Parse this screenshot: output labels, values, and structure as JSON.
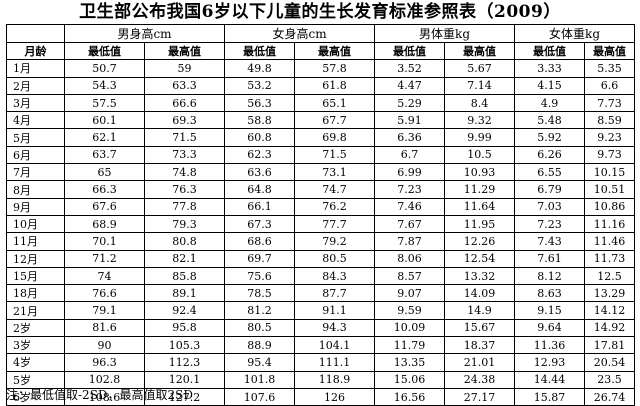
{
  "title": "卫生部公布我国6岁以下儿童的生长发育标准参照表（2009）",
  "group_headers": [
    "男身高cm",
    "女身高cm",
    "男体重kg",
    "女体重kg"
  ],
  "first_col_header": "月龄",
  "sub_headers": [
    "最低值",
    "最高值",
    "最低值",
    "最高值",
    "最低值",
    "最高值",
    "最低值",
    "最高值"
  ],
  "rows": [
    {
      "age": "1月",
      "values": [
        "50.7",
        "59",
        "49.8",
        "57.8",
        "3.52",
        "5.67",
        "3.33",
        "5.35"
      ]
    },
    {
      "age": "2月",
      "values": [
        "54.3",
        "63.3",
        "53.2",
        "61.8",
        "4.47",
        "7.14",
        "4.15",
        "6.6"
      ]
    },
    {
      "age": "3月",
      "values": [
        "57.5",
        "66.6",
        "56.3",
        "65.1",
        "5.29",
        "8.4",
        "4.9",
        "7.73"
      ]
    },
    {
      "age": "4月",
      "values": [
        "60.1",
        "69.3",
        "58.8",
        "67.7",
        "5.91",
        "9.32",
        "5.48",
        "8.59"
      ]
    },
    {
      "age": "5月",
      "values": [
        "62.1",
        "71.5",
        "60.8",
        "69.8",
        "6.36",
        "9.99",
        "5.92",
        "9.23"
      ]
    },
    {
      "age": "6月",
      "values": [
        "63.7",
        "73.3",
        "62.3",
        "71.5",
        "6.7",
        "10.5",
        "6.26",
        "9.73"
      ]
    },
    {
      "age": "7月",
      "values": [
        "65",
        "74.8",
        "63.6",
        "73.1",
        "6.99",
        "10.93",
        "6.55",
        "10.15"
      ]
    },
    {
      "age": "8月",
      "values": [
        "66.3",
        "76.3",
        "64.8",
        "74.7",
        "7.23",
        "11.29",
        "6.79",
        "10.51"
      ]
    },
    {
      "age": "9月",
      "values": [
        "67.6",
        "77.8",
        "66.1",
        "76.2",
        "7.46",
        "11.64",
        "7.03",
        "10.86"
      ]
    },
    {
      "age": "10月",
      "values": [
        "68.9",
        "79.3",
        "67.3",
        "77.7",
        "7.67",
        "11.95",
        "7.23",
        "11.16"
      ]
    },
    {
      "age": "11月",
      "values": [
        "70.1",
        "80.8",
        "68.6",
        "79.2",
        "7.87",
        "12.26",
        "7.43",
        "11.46"
      ]
    },
    {
      "age": "12月",
      "values": [
        "71.2",
        "82.1",
        "69.7",
        "80.5",
        "8.06",
        "12.54",
        "7.61",
        "11.73"
      ]
    },
    {
      "age": "15月",
      "values": [
        "74",
        "85.8",
        "75.6",
        "84.3",
        "8.57",
        "13.32",
        "8.12",
        "12.5"
      ]
    },
    {
      "age": "18月",
      "values": [
        "76.6",
        "89.1",
        "78.5",
        "87.7",
        "9.07",
        "14.09",
        "8.63",
        "13.29"
      ]
    },
    {
      "age": "21月",
      "values": [
        "79.1",
        "92.4",
        "81.2",
        "91.1",
        "9.59",
        "14.9",
        "9.15",
        "14.12"
      ]
    },
    {
      "age": "2岁",
      "values": [
        "81.6",
        "95.8",
        "80.5",
        "94.3",
        "10.09",
        "15.67",
        "9.64",
        "14.92"
      ]
    },
    {
      "age": "3岁",
      "values": [
        "90",
        "105.3",
        "88.9",
        "104.1",
        "11.79",
        "18.37",
        "11.36",
        "17.81"
      ]
    },
    {
      "age": "4岁",
      "values": [
        "96.3",
        "112.3",
        "95.4",
        "111.1",
        "13.35",
        "21.01",
        "12.93",
        "20.54"
      ]
    },
    {
      "age": "5岁",
      "values": [
        "102.8",
        "120.1",
        "101.8",
        "118.9",
        "15.06",
        "24.38",
        "14.44",
        "23.5"
      ]
    },
    {
      "age": "6岁",
      "values": [
        "108.6",
        "127.2",
        "107.6",
        "126",
        "16.56",
        "27.17",
        "15.87",
        "26.74"
      ]
    }
  ],
  "note": "注：最低值取-2SD，最高值取2SD"
}
